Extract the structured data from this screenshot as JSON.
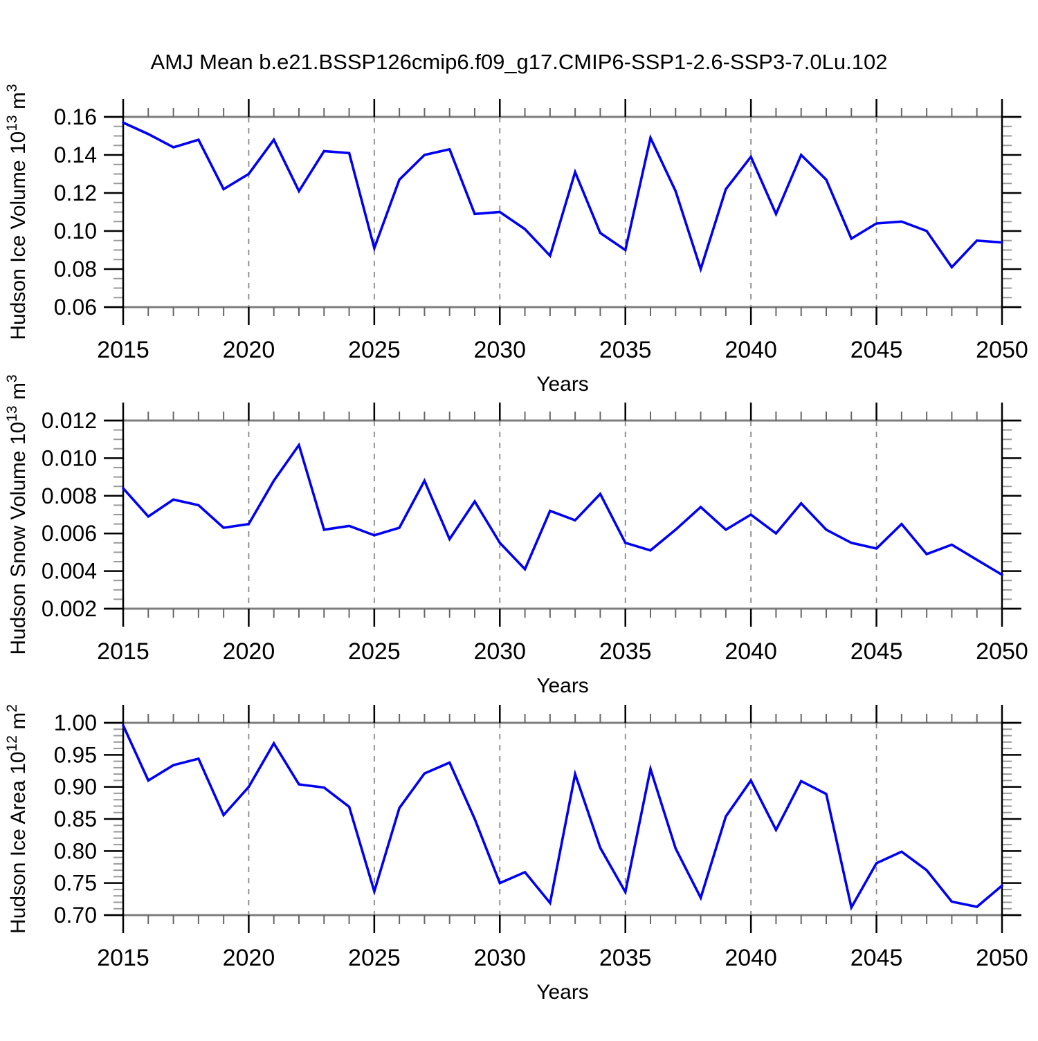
{
  "title": "AMJ Mean b.e21.BSSP126cmip6.f09_g17.CMIP6-SSP1-2.6-SSP3-7.0Lu.102",
  "line_color": "#0000f2",
  "chart_data": [
    {
      "id": "hudson-ice-volume",
      "type": "line",
      "title": "",
      "xlabel": "Years",
      "ylabel": "Hudson Ice Volume 10^13 m^3",
      "ylabel_parts": [
        {
          "text": "Hudson Ice Volume 10"
        },
        {
          "text": "13",
          "sup": true
        },
        {
          "text": " m"
        },
        {
          "text": "3",
          "sup": true
        }
      ],
      "x": [
        2015,
        2016,
        2017,
        2018,
        2019,
        2020,
        2021,
        2022,
        2023,
        2024,
        2025,
        2026,
        2027,
        2028,
        2029,
        2030,
        2031,
        2032,
        2033,
        2034,
        2035,
        2036,
        2037,
        2038,
        2039,
        2040,
        2041,
        2042,
        2043,
        2044,
        2045,
        2046,
        2047,
        2048,
        2049,
        2050
      ],
      "values": [
        0.157,
        0.151,
        0.144,
        0.148,
        0.122,
        0.13,
        0.148,
        0.121,
        0.142,
        0.141,
        0.091,
        0.127,
        0.14,
        0.143,
        0.109,
        0.11,
        0.101,
        0.087,
        0.131,
        0.099,
        0.09,
        0.149,
        0.121,
        0.08,
        0.122,
        0.139,
        0.109,
        0.14,
        0.127,
        0.096,
        0.104,
        0.105,
        0.1,
        0.081,
        0.095,
        0.094
      ],
      "ylim": [
        0.06,
        0.16
      ],
      "y_major_step": 0.02,
      "y_minor_step": 0.005,
      "y_tick_labels": [
        "0.06",
        "0.08",
        "0.10",
        "0.12",
        "0.14",
        "0.16"
      ],
      "x_tick_labels": [
        "2015",
        "2020",
        "2025",
        "2030",
        "2035",
        "2040",
        "2045",
        "2050"
      ],
      "x_major_step": 5,
      "grid_x": [
        2020,
        2025,
        2030,
        2035,
        2040,
        2045
      ],
      "legend": "none"
    },
    {
      "id": "hudson-snow-volume",
      "type": "line",
      "title": "",
      "xlabel": "Years",
      "ylabel": "Hudson Snow Volume 10^13 m^3",
      "ylabel_parts": [
        {
          "text": "Hudson Snow Volume 10"
        },
        {
          "text": "13",
          "sup": true
        },
        {
          "text": " m"
        },
        {
          "text": "3",
          "sup": true
        }
      ],
      "x": [
        2015,
        2016,
        2017,
        2018,
        2019,
        2020,
        2021,
        2022,
        2023,
        2024,
        2025,
        2026,
        2027,
        2028,
        2029,
        2030,
        2031,
        2032,
        2033,
        2034,
        2035,
        2036,
        2037,
        2038,
        2039,
        2040,
        2041,
        2042,
        2043,
        2044,
        2045,
        2046,
        2047,
        2048,
        2049,
        2050
      ],
      "values": [
        0.0084,
        0.0069,
        0.0078,
        0.0075,
        0.0063,
        0.0065,
        0.0088,
        0.0107,
        0.0062,
        0.0064,
        0.0059,
        0.0063,
        0.0088,
        0.0057,
        0.0077,
        0.0055,
        0.0041,
        0.0072,
        0.0067,
        0.0081,
        0.0055,
        0.0051,
        0.0062,
        0.0074,
        0.0062,
        0.007,
        0.006,
        0.0076,
        0.0062,
        0.0055,
        0.0052,
        0.0065,
        0.0049,
        0.0054,
        0.0046,
        0.0038
      ],
      "ylim": [
        0.002,
        0.012
      ],
      "y_major_step": 0.002,
      "y_minor_step": 0.0005,
      "y_tick_labels": [
        "0.002",
        "0.004",
        "0.006",
        "0.008",
        "0.010",
        "0.012"
      ],
      "x_tick_labels": [
        "2015",
        "2020",
        "2025",
        "2030",
        "2035",
        "2040",
        "2045",
        "2050"
      ],
      "x_major_step": 5,
      "grid_x": [
        2020,
        2025,
        2030,
        2035,
        2040,
        2045
      ],
      "legend": "none"
    },
    {
      "id": "hudson-ice-area",
      "type": "line",
      "title": "",
      "xlabel": "Years",
      "ylabel": "Hudson Ice Area 10^12 m^2",
      "ylabel_parts": [
        {
          "text": "Hudson Ice Area 10"
        },
        {
          "text": "12",
          "sup": true
        },
        {
          "text": " m"
        },
        {
          "text": "2",
          "sup": true
        }
      ],
      "x": [
        2015,
        2016,
        2017,
        2018,
        2019,
        2020,
        2021,
        2022,
        2023,
        2024,
        2025,
        2026,
        2027,
        2028,
        2029,
        2030,
        2031,
        2032,
        2033,
        2034,
        2035,
        2036,
        2037,
        2038,
        2039,
        2040,
        2041,
        2042,
        2043,
        2044,
        2045,
        2046,
        2047,
        2048,
        2049,
        2050
      ],
      "values": [
        0.996,
        0.91,
        0.934,
        0.944,
        0.856,
        0.9,
        0.968,
        0.904,
        0.899,
        0.869,
        0.737,
        0.867,
        0.921,
        0.938,
        0.85,
        0.75,
        0.767,
        0.719,
        0.92,
        0.805,
        0.736,
        0.928,
        0.804,
        0.727,
        0.854,
        0.91,
        0.833,
        0.909,
        0.889,
        0.712,
        0.781,
        0.799,
        0.77,
        0.721,
        0.713,
        0.746
      ],
      "ylim": [
        0.7,
        1.0
      ],
      "y_major_step": 0.05,
      "y_minor_step": 0.01,
      "y_tick_labels": [
        "0.70",
        "0.75",
        "0.80",
        "0.85",
        "0.90",
        "0.95",
        "1.00"
      ],
      "x_tick_labels": [
        "2015",
        "2020",
        "2025",
        "2030",
        "2035",
        "2040",
        "2045",
        "2050"
      ],
      "x_major_step": 5,
      "grid_x": [
        2020,
        2025,
        2030,
        2035,
        2040,
        2045
      ],
      "legend": "none"
    }
  ]
}
